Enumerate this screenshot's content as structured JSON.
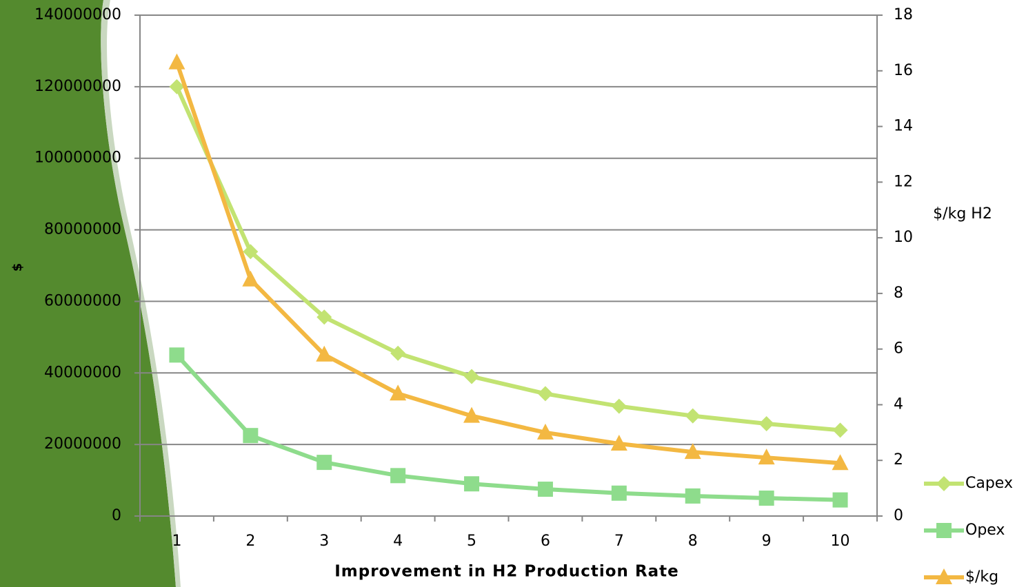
{
  "chart_data": {
    "type": "line",
    "x_label": "Improvement in H2 Production Rate",
    "y_label": "$",
    "y2_label": "$/kg H2",
    "categories": [
      "1",
      "2",
      "3",
      "4",
      "5",
      "6",
      "7",
      "8",
      "9",
      "10"
    ],
    "series": [
      {
        "name": "Capex",
        "color": "#c2e372",
        "marker": "diamond",
        "values": [
          120000000,
          73900000,
          55600000,
          45500000,
          39000000,
          34200000,
          30700000,
          28000000,
          25800000,
          24000000
        ]
      },
      {
        "name": "Opex",
        "color": "#8edc8c",
        "marker": "square",
        "values": [
          45000000,
          22500000,
          15000000,
          11300000,
          9000000,
          7500000,
          6400000,
          5600000,
          5000000,
          4500000
        ]
      },
      {
        "name": "$/kg",
        "color": "#f3b842",
        "marker": "triangle",
        "axis": "y2",
        "values": [
          16.3,
          8.5,
          5.8,
          4.4,
          3.6,
          3.0,
          2.6,
          2.3,
          2.1,
          1.9
        ]
      }
    ],
    "ylim": [
      0,
      140000000
    ],
    "yticks": [
      0,
      20000000,
      40000000,
      60000000,
      80000000,
      100000000,
      120000000,
      140000000
    ],
    "y2lim": [
      0,
      18
    ],
    "y2ticks": [
      0,
      2,
      4,
      6,
      8,
      10,
      12,
      14,
      16,
      18
    ],
    "grid": true
  }
}
